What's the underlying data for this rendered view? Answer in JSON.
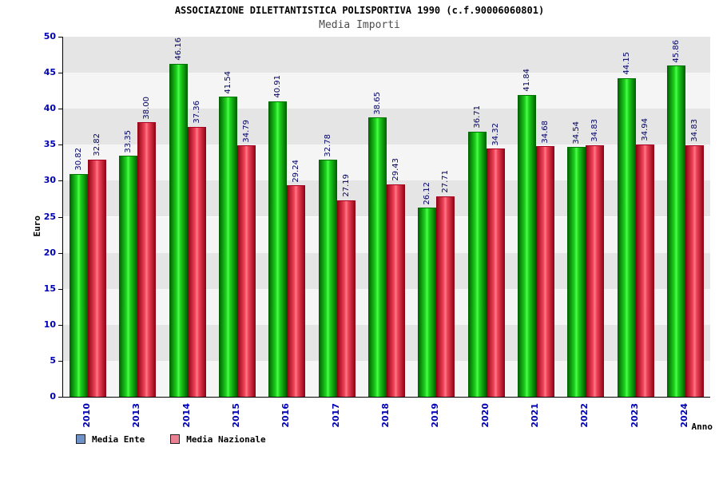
{
  "chart_data": {
    "type": "bar",
    "title": "ASSOCIAZIONE DILETTANTISTICA POLISPORTIVA 1990 (c.f.90006060801)",
    "subtitle": "Media Importi",
    "xlabel": "Anno",
    "ylabel": "Euro",
    "ylim": [
      0,
      50
    ],
    "ytick_step": 5,
    "grid": "banded",
    "legend_position": "bottom-left",
    "categories": [
      "2010",
      "2013",
      "2014",
      "2015",
      "2016",
      "2017",
      "2018",
      "2019",
      "2020",
      "2021",
      "2022",
      "2023",
      "2024"
    ],
    "series": [
      {
        "name": "Media Ente",
        "values": [
          30.82,
          33.35,
          46.16,
          41.54,
          40.91,
          32.78,
          38.65,
          26.12,
          36.71,
          41.84,
          34.54,
          44.15,
          45.86
        ]
      },
      {
        "name": "Media Nazionale",
        "values": [
          32.82,
          38.0,
          37.36,
          34.79,
          29.24,
          27.19,
          29.43,
          27.71,
          34.32,
          34.68,
          34.83,
          34.94,
          34.83
        ]
      }
    ],
    "colors": {
      "bar_ente": "#00cc00",
      "bar_nazionale": "#ee3344",
      "legend_swatch_ente": "#6f92c9",
      "legend_swatch_nazionale": "#ec8093",
      "tick_label": "#0000b4",
      "value_label": "#000066",
      "band_dark": "#e5e5e5",
      "band_light": "#f5f5f5"
    }
  }
}
